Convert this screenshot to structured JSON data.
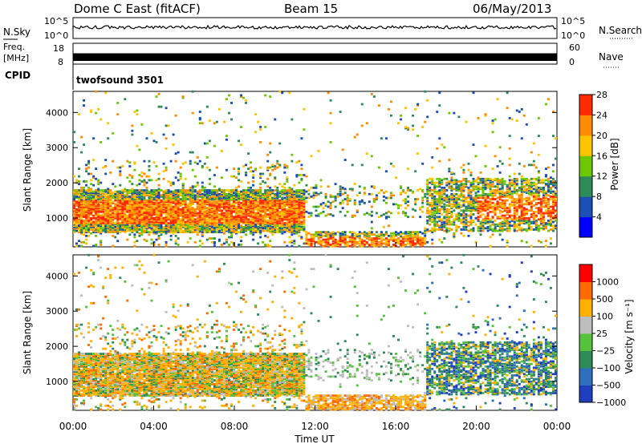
{
  "header": {
    "radar": "Dome C East (fitACF)",
    "beam": "Beam 15",
    "date": "06/May/2013"
  },
  "top_panels": {
    "nsky_label": "N.Sky",
    "nsky_ticks": [
      "10^5",
      "10^0"
    ],
    "nsearch_label": "N.Search",
    "nsearch_ticks": [
      "10^5",
      "10^0"
    ],
    "freq_label_1": "Freq.",
    "freq_label_2": "[MHz]",
    "freq_ticks": [
      "18",
      "8"
    ],
    "nave_label": "Nave",
    "nave_ticks": [
      "60",
      "0"
    ],
    "cpid_label": "CPID",
    "cpid_value": "twofsound 3501"
  },
  "chart_data": [
    {
      "type": "heatmap",
      "name": "power",
      "xlabel": "",
      "ylabel": "Slant Range [km]",
      "ylim": [
        180,
        4600
      ],
      "y_ticks": [
        "1000",
        "2000",
        "3000",
        "4000"
      ],
      "colorbar": {
        "label": "Power [dB]",
        "ticks": [
          "4",
          "8",
          "12",
          "16",
          "20",
          "24",
          "28"
        ],
        "colors": [
          "#0000ff",
          "#1c4fb4",
          "#2e8b57",
          "#6ec800",
          "#ffc400",
          "#ff8c00",
          "#ff2a00"
        ]
      },
      "description_scatter_regions": [
        {
          "t_start": 0.0,
          "t_end": 11.5,
          "r_min": 600,
          "r_max": 1800,
          "value": "high"
        },
        {
          "t_start": 11.5,
          "t_end": 17.5,
          "r_min": 200,
          "r_max": 600,
          "value": "medium"
        },
        {
          "t_start": 17.5,
          "t_end": 24.0,
          "r_min": 600,
          "r_max": 2100,
          "value": "medium"
        }
      ]
    },
    {
      "type": "heatmap",
      "name": "velocity",
      "xlabel": "Time UT",
      "ylabel": "Slant Range [km]",
      "ylim": [
        180,
        4600
      ],
      "y_ticks": [
        "1000",
        "2000",
        "3000",
        "4000"
      ],
      "colorbar": {
        "label": "Velocity [m s⁻¹]",
        "ticks": [
          "1000",
          "500",
          "100",
          "25",
          "−25",
          "−100",
          "−500",
          "−1000"
        ],
        "colors": [
          "#1f3fbf",
          "#2e6fbf",
          "#2e8b57",
          "#56c23c",
          "#bdbdbd",
          "#ffb000",
          "#ff6a00",
          "#ff0000"
        ]
      }
    }
  ],
  "x_axis": {
    "label": "Time UT",
    "ticks": [
      "00:00",
      "04:00",
      "08:00",
      "12:00",
      "16:00",
      "20:00",
      "00:00"
    ]
  }
}
